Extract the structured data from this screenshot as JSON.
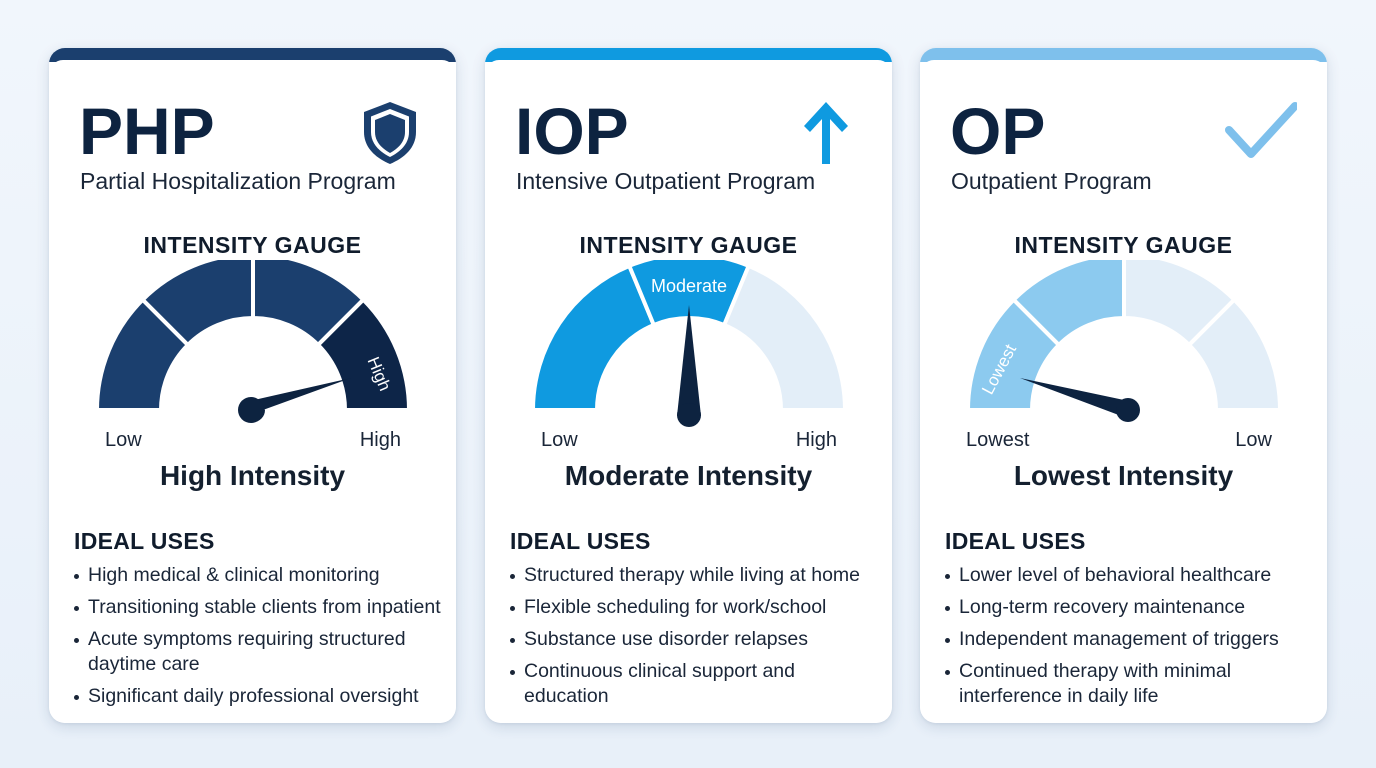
{
  "cards": [
    {
      "abbr": "PHP",
      "name": "Partial Hospitalization Program",
      "icon": "shield-icon",
      "accent": "#1b3f6e",
      "gauge_title": "INTENSITY GAUGE",
      "segment_label": "High",
      "label_left": "Low",
      "label_right": "High",
      "intensity": "High Intensity",
      "uses_title": "IDEAL USES",
      "uses": [
        "High medical & clinical monitoring",
        "Transitioning stable clients from inpatient",
        "Acute symptoms requiring structured daytime care",
        "Significant daily professional oversight"
      ]
    },
    {
      "abbr": "IOP",
      "name": "Intensive Outpatient Program",
      "icon": "arrow-up-icon",
      "accent": "#0f9ae0",
      "gauge_title": "INTENSITY GAUGE",
      "segment_label": "Moderate",
      "label_left": "Low",
      "label_right": "High",
      "intensity": "Moderate Intensity",
      "uses_title": "IDEAL USES",
      "uses": [
        "Structured therapy while living at home",
        "Flexible scheduling for work/school",
        "Substance use disorder relapses",
        "Continuous clinical support and education"
      ]
    },
    {
      "abbr": "OP",
      "name": "Outpatient Program",
      "icon": "checkmark-icon",
      "accent": "#7ec0ec",
      "gauge_title": "INTENSITY GAUGE",
      "segment_label": "Lowest",
      "label_left": "Lowest",
      "label_right": "Low",
      "intensity": "Lowest Intensity",
      "uses_title": "IDEAL USES",
      "uses": [
        "Lower level of behavioral healthcare",
        "Long-term recovery maintenance",
        "Independent management of triggers",
        "Continued therapy with minimal interference in daily life"
      ]
    }
  ]
}
